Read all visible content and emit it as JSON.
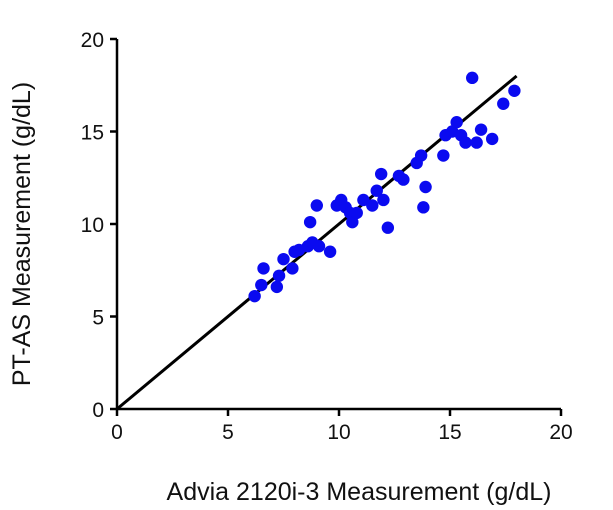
{
  "chart_data": {
    "type": "scatter",
    "xlabel": "Advia 2120i-3 Measurement (g/dL)",
    "ylabel": "PT-AS Measurement (g/dL)",
    "xlim": [
      0,
      20
    ],
    "ylim": [
      0,
      20
    ],
    "xticks": [
      "0",
      "5",
      "10",
      "15",
      "20"
    ],
    "yticks": [
      "0",
      "5",
      "10",
      "15",
      "20"
    ],
    "grid": false,
    "point_color": "#0a0af0",
    "line_color": "#000000",
    "fit_line": {
      "x": [
        0,
        18
      ],
      "y": [
        0,
        18
      ]
    },
    "series": [
      {
        "points": [
          [
            6.2,
            6.1
          ],
          [
            6.5,
            6.7
          ],
          [
            6.6,
            7.6
          ],
          [
            7.2,
            6.6
          ],
          [
            7.3,
            7.2
          ],
          [
            7.5,
            8.1
          ],
          [
            7.9,
            7.6
          ],
          [
            8.0,
            8.5
          ],
          [
            8.2,
            8.6
          ],
          [
            8.6,
            8.8
          ],
          [
            8.7,
            10.1
          ],
          [
            8.8,
            9.0
          ],
          [
            9.0,
            11.0
          ],
          [
            9.1,
            8.8
          ],
          [
            9.6,
            8.5
          ],
          [
            9.9,
            11.0
          ],
          [
            10.1,
            11.3
          ],
          [
            10.3,
            10.9
          ],
          [
            10.5,
            10.6
          ],
          [
            10.6,
            10.1
          ],
          [
            10.8,
            10.6
          ],
          [
            11.1,
            11.3
          ],
          [
            11.5,
            11.0
          ],
          [
            11.7,
            11.8
          ],
          [
            11.9,
            12.7
          ],
          [
            12.0,
            11.3
          ],
          [
            12.2,
            9.8
          ],
          [
            12.7,
            12.6
          ],
          [
            12.9,
            12.4
          ],
          [
            13.5,
            13.3
          ],
          [
            13.7,
            13.7
          ],
          [
            13.8,
            10.9
          ],
          [
            13.9,
            12.0
          ],
          [
            14.7,
            13.7
          ],
          [
            14.8,
            14.8
          ],
          [
            15.1,
            15.0
          ],
          [
            15.3,
            15.5
          ],
          [
            15.5,
            14.8
          ],
          [
            15.7,
            14.4
          ],
          [
            16.0,
            17.9
          ],
          [
            16.2,
            14.4
          ],
          [
            16.4,
            15.1
          ],
          [
            16.9,
            14.6
          ],
          [
            17.4,
            16.5
          ],
          [
            17.9,
            17.2
          ]
        ]
      }
    ]
  }
}
